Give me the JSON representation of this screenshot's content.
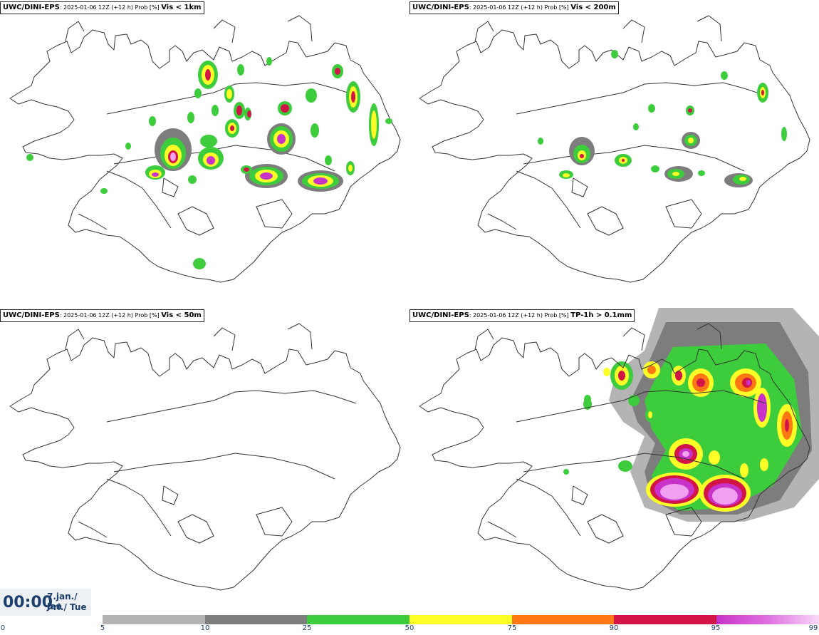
{
  "panels": [
    {
      "model": "UWC/DINI-EPS",
      "meta": ": 2025-01-06 12Z (+12 h) Prob [%] ",
      "variable": "Vis < 1km"
    },
    {
      "model": "UWC/DINI-EPS",
      "meta": ": 2025-01-06 12Z (+12 h) Prob [%] ",
      "variable": "Vis < 200m"
    },
    {
      "model": "UWC/DINI-EPS",
      "meta": ": 2025-01-06 12Z (+12 h) Prob [%] ",
      "variable": "Vis < 50m"
    },
    {
      "model": "UWC/DINI-EPS",
      "meta": ": 2025-01-06 12Z (+12 h) Prob [%] ",
      "variable": "TP-1h > 0.1mm"
    }
  ],
  "time": {
    "clock": "00:00",
    "date_line1": "7.jan./ Jan",
    "date_line2": "Þri./ Tue"
  },
  "legend": {
    "thresholds": [
      "0",
      "5",
      "10",
      "25",
      "50",
      "75",
      "90",
      "95",
      "99"
    ],
    "colors": [
      "#b4b4b4",
      "#7d7d7d",
      "#3ccc3c",
      "#ffff28",
      "#ff7814",
      "#d21446",
      "#c832c8",
      "#f0a0f0"
    ]
  },
  "colors": {
    "p5": "#b4b4b4",
    "p10": "#7d7d7d",
    "p25": "#3ccc3c",
    "p50": "#ffff28",
    "p75": "#ff7814",
    "p90": "#d21446",
    "p95": "#c832c8",
    "p99": "#f0a0f0",
    "coast": "#333333",
    "text": "#1c3f6e"
  }
}
